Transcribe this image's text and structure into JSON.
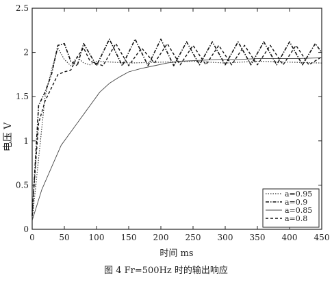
{
  "chart_data": {
    "type": "line",
    "ylabel": "电压 V",
    "xlabel": "时间 ms",
    "xlim": [
      0,
      450
    ],
    "ylim": [
      0,
      2.5
    ],
    "xticks": [
      0,
      50,
      100,
      150,
      200,
      250,
      300,
      350,
      400,
      450
    ],
    "xtick_labels": [
      "0",
      "50",
      "100",
      "150",
      "200",
      "250",
      "300",
      "350",
      "400",
      "450"
    ],
    "yticks": [
      0,
      0.5,
      1,
      1.5,
      2,
      2.5
    ],
    "ytick_labels": [
      "0",
      "0.5",
      "1",
      "1.5",
      "2",
      "2.5"
    ],
    "legend_position": "bottom-right",
    "grid": false,
    "series": [
      {
        "name": "a=0.95",
        "style": "dotted",
        "x": [
          0,
          10,
          20,
          30,
          40,
          50,
          60,
          70,
          80,
          90,
          100,
          150,
          200,
          250,
          300,
          350,
          400,
          450
        ],
        "y": [
          0.1,
          0.8,
          1.5,
          1.8,
          2.05,
          1.92,
          1.85,
          1.95,
          1.88,
          1.86,
          1.9,
          1.88,
          1.89,
          1.9,
          1.88,
          1.9,
          1.89,
          1.88
        ]
      },
      {
        "name": "a=0.9",
        "style": "dash-dot",
        "x": [
          0,
          10,
          20,
          30,
          40,
          50,
          60,
          70,
          80,
          100,
          120,
          140,
          160,
          180,
          200,
          220,
          240,
          260,
          280,
          300,
          320,
          340,
          360,
          380,
          400,
          420,
          440,
          450
        ],
        "y": [
          0.15,
          1.4,
          1.55,
          1.75,
          2.08,
          2.1,
          1.9,
          1.85,
          2.1,
          1.85,
          2.15,
          1.85,
          2.15,
          1.85,
          2.15,
          1.85,
          2.12,
          1.86,
          2.12,
          1.86,
          2.12,
          1.86,
          2.12,
          1.86,
          2.12,
          1.86,
          2.1,
          2.0
        ]
      },
      {
        "name": "a=0.85",
        "style": "thin",
        "x": [
          0,
          15,
          30,
          45,
          60,
          75,
          90,
          105,
          120,
          135,
          150,
          170,
          190,
          210,
          230,
          260,
          290,
          320,
          350,
          380,
          410,
          450
        ],
        "y": [
          0.1,
          0.45,
          0.7,
          0.95,
          1.1,
          1.25,
          1.4,
          1.55,
          1.65,
          1.72,
          1.78,
          1.82,
          1.85,
          1.88,
          1.9,
          1.91,
          1.92,
          1.92,
          1.93,
          1.93,
          1.93,
          1.94
        ]
      },
      {
        "name": "a=0.8",
        "style": "dashed",
        "x": [
          0,
          10,
          20,
          30,
          40,
          50,
          60,
          70,
          80,
          90,
          110,
          130,
          150,
          170,
          190,
          210,
          230,
          250,
          270,
          290,
          310,
          330,
          350,
          370,
          390,
          410,
          430,
          450
        ],
        "y": [
          0.2,
          1.2,
          1.45,
          1.6,
          1.75,
          1.78,
          1.8,
          1.95,
          2.05,
          1.9,
          1.85,
          2.1,
          1.85,
          2.05,
          1.88,
          2.1,
          1.86,
          2.08,
          1.86,
          2.08,
          1.86,
          2.08,
          1.86,
          2.08,
          1.86,
          2.08,
          1.86,
          1.95
        ]
      }
    ]
  },
  "caption": "图 4 Fr=500Hz 时的输出响应"
}
